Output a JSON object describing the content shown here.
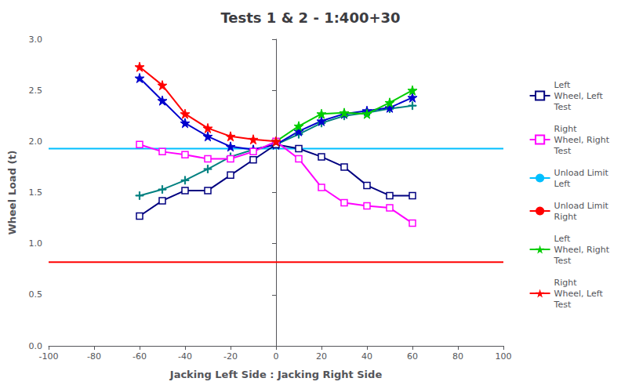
{
  "chart_data": {
    "type": "line",
    "title": "Tests 1 & 2 - 1:400+30",
    "xlabel": "Jacking Left Side : Jacking Right Side",
    "ylabel": "Wheel Load (t)",
    "xlim": [
      -100,
      100
    ],
    "ylim": [
      0.0,
      3.0
    ],
    "xticks": [
      -100,
      -80,
      -60,
      -40,
      -20,
      0,
      20,
      40,
      60,
      80,
      100
    ],
    "yticks": [
      {
        "value": 0.0,
        "label": "0.0"
      },
      0.5,
      {
        "value": 1.0,
        "label": "1.0"
      },
      1.5,
      {
        "value": 2.0,
        "label": "2.0"
      },
      2.5,
      {
        "value": 3.0,
        "label": "3.0"
      }
    ],
    "grid": false,
    "legend": "right",
    "series": [
      {
        "type": "line",
        "color": "#008080",
        "marker": "plus",
        "x": [
          0,
          10,
          20,
          30,
          40,
          50,
          60
        ],
        "values": [
          1.97,
          2.07,
          2.18,
          2.25,
          2.28,
          2.32,
          2.35
        ]
      },
      {
        "type": "line",
        "color": "#008080",
        "marker": "plus",
        "x": [
          -60,
          -50,
          -40,
          -30,
          -20,
          -10,
          0
        ],
        "values": [
          1.47,
          1.53,
          1.62,
          1.73,
          1.85,
          1.92,
          1.97
        ]
      },
      {
        "type": "line",
        "color": "#0000CD",
        "marker": "star",
        "x": [
          0,
          10,
          20,
          30,
          40,
          50,
          60
        ],
        "values": [
          1.97,
          2.1,
          2.2,
          2.27,
          2.3,
          2.33,
          2.43
        ]
      },
      {
        "type": "line",
        "color": "#0000CD",
        "marker": "star",
        "x": [
          -60,
          -50,
          -40,
          -30,
          -20,
          -10,
          0
        ],
        "values": [
          2.62,
          2.4,
          2.18,
          2.05,
          1.95,
          1.92,
          1.97
        ]
      },
      {
        "type": "line",
        "name": "Left\nWheel, Left\nTest",
        "color": "#000080",
        "marker": "open_square",
        "x": [
          -60,
          -50,
          -40,
          -30,
          -20,
          -10,
          0,
          10,
          20,
          30,
          40,
          50,
          60
        ],
        "values": [
          1.27,
          1.42,
          1.52,
          1.52,
          1.67,
          1.82,
          1.97,
          1.93,
          1.85,
          1.75,
          1.57,
          1.47,
          1.47
        ]
      },
      {
        "type": "line",
        "name": "Right\nWheel, Right\nTest",
        "color": "#FF00FF",
        "marker": "open_square",
        "x": [
          -60,
          -50,
          -40,
          -30,
          -20,
          -10,
          0,
          10,
          20,
          30,
          40,
          50,
          60
        ],
        "values": [
          1.97,
          1.9,
          1.87,
          1.83,
          1.83,
          1.9,
          2.0,
          1.83,
          1.55,
          1.4,
          1.37,
          1.35,
          1.2
        ]
      },
      {
        "type": "hline",
        "name": "Unload Limit\nLeft",
        "color": "#00BFFF",
        "values": [
          1.93
        ]
      },
      {
        "type": "hline",
        "name": "Unload Limit\nRight",
        "color": "#FF0000",
        "values": [
          0.82
        ]
      },
      {
        "type": "line",
        "name": "Left\nWheel, Right\nTest",
        "color": "#00CC00",
        "marker": "star",
        "x": [
          0,
          10,
          20,
          30,
          40,
          50,
          60
        ],
        "values": [
          2.0,
          2.15,
          2.27,
          2.28,
          2.27,
          2.38,
          2.5
        ]
      },
      {
        "type": "line",
        "name": "Right\nWheel, Left\nTest",
        "color": "#FF0000",
        "marker": "star",
        "x": [
          -60,
          -50,
          -40,
          -30,
          -20,
          -10,
          0
        ],
        "values": [
          2.73,
          2.55,
          2.27,
          2.13,
          2.05,
          2.02,
          2.0
        ]
      }
    ]
  }
}
